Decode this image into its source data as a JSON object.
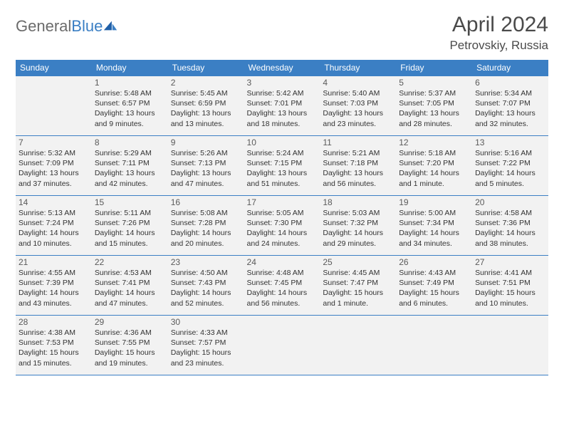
{
  "brand": {
    "name_part1": "General",
    "name_part2": "Blue"
  },
  "title": "April 2024",
  "location": "Petrovskiy, Russia",
  "colors": {
    "header_bg": "#3b7fc4",
    "cell_bg": "#f2f2f2",
    "border": "#3b7fc4",
    "text": "#333333",
    "muted": "#5a5a5a"
  },
  "weekdays": [
    "Sunday",
    "Monday",
    "Tuesday",
    "Wednesday",
    "Thursday",
    "Friday",
    "Saturday"
  ],
  "weeks": [
    [
      null,
      {
        "n": "1",
        "sr": "Sunrise: 5:48 AM",
        "ss": "Sunset: 6:57 PM",
        "dl": "Daylight: 13 hours and 9 minutes."
      },
      {
        "n": "2",
        "sr": "Sunrise: 5:45 AM",
        "ss": "Sunset: 6:59 PM",
        "dl": "Daylight: 13 hours and 13 minutes."
      },
      {
        "n": "3",
        "sr": "Sunrise: 5:42 AM",
        "ss": "Sunset: 7:01 PM",
        "dl": "Daylight: 13 hours and 18 minutes."
      },
      {
        "n": "4",
        "sr": "Sunrise: 5:40 AM",
        "ss": "Sunset: 7:03 PM",
        "dl": "Daylight: 13 hours and 23 minutes."
      },
      {
        "n": "5",
        "sr": "Sunrise: 5:37 AM",
        "ss": "Sunset: 7:05 PM",
        "dl": "Daylight: 13 hours and 28 minutes."
      },
      {
        "n": "6",
        "sr": "Sunrise: 5:34 AM",
        "ss": "Sunset: 7:07 PM",
        "dl": "Daylight: 13 hours and 32 minutes."
      }
    ],
    [
      {
        "n": "7",
        "sr": "Sunrise: 5:32 AM",
        "ss": "Sunset: 7:09 PM",
        "dl": "Daylight: 13 hours and 37 minutes."
      },
      {
        "n": "8",
        "sr": "Sunrise: 5:29 AM",
        "ss": "Sunset: 7:11 PM",
        "dl": "Daylight: 13 hours and 42 minutes."
      },
      {
        "n": "9",
        "sr": "Sunrise: 5:26 AM",
        "ss": "Sunset: 7:13 PM",
        "dl": "Daylight: 13 hours and 47 minutes."
      },
      {
        "n": "10",
        "sr": "Sunrise: 5:24 AM",
        "ss": "Sunset: 7:15 PM",
        "dl": "Daylight: 13 hours and 51 minutes."
      },
      {
        "n": "11",
        "sr": "Sunrise: 5:21 AM",
        "ss": "Sunset: 7:18 PM",
        "dl": "Daylight: 13 hours and 56 minutes."
      },
      {
        "n": "12",
        "sr": "Sunrise: 5:18 AM",
        "ss": "Sunset: 7:20 PM",
        "dl": "Daylight: 14 hours and 1 minute."
      },
      {
        "n": "13",
        "sr": "Sunrise: 5:16 AM",
        "ss": "Sunset: 7:22 PM",
        "dl": "Daylight: 14 hours and 5 minutes."
      }
    ],
    [
      {
        "n": "14",
        "sr": "Sunrise: 5:13 AM",
        "ss": "Sunset: 7:24 PM",
        "dl": "Daylight: 14 hours and 10 minutes."
      },
      {
        "n": "15",
        "sr": "Sunrise: 5:11 AM",
        "ss": "Sunset: 7:26 PM",
        "dl": "Daylight: 14 hours and 15 minutes."
      },
      {
        "n": "16",
        "sr": "Sunrise: 5:08 AM",
        "ss": "Sunset: 7:28 PM",
        "dl": "Daylight: 14 hours and 20 minutes."
      },
      {
        "n": "17",
        "sr": "Sunrise: 5:05 AM",
        "ss": "Sunset: 7:30 PM",
        "dl": "Daylight: 14 hours and 24 minutes."
      },
      {
        "n": "18",
        "sr": "Sunrise: 5:03 AM",
        "ss": "Sunset: 7:32 PM",
        "dl": "Daylight: 14 hours and 29 minutes."
      },
      {
        "n": "19",
        "sr": "Sunrise: 5:00 AM",
        "ss": "Sunset: 7:34 PM",
        "dl": "Daylight: 14 hours and 34 minutes."
      },
      {
        "n": "20",
        "sr": "Sunrise: 4:58 AM",
        "ss": "Sunset: 7:36 PM",
        "dl": "Daylight: 14 hours and 38 minutes."
      }
    ],
    [
      {
        "n": "21",
        "sr": "Sunrise: 4:55 AM",
        "ss": "Sunset: 7:39 PM",
        "dl": "Daylight: 14 hours and 43 minutes."
      },
      {
        "n": "22",
        "sr": "Sunrise: 4:53 AM",
        "ss": "Sunset: 7:41 PM",
        "dl": "Daylight: 14 hours and 47 minutes."
      },
      {
        "n": "23",
        "sr": "Sunrise: 4:50 AM",
        "ss": "Sunset: 7:43 PM",
        "dl": "Daylight: 14 hours and 52 minutes."
      },
      {
        "n": "24",
        "sr": "Sunrise: 4:48 AM",
        "ss": "Sunset: 7:45 PM",
        "dl": "Daylight: 14 hours and 56 minutes."
      },
      {
        "n": "25",
        "sr": "Sunrise: 4:45 AM",
        "ss": "Sunset: 7:47 PM",
        "dl": "Daylight: 15 hours and 1 minute."
      },
      {
        "n": "26",
        "sr": "Sunrise: 4:43 AM",
        "ss": "Sunset: 7:49 PM",
        "dl": "Daylight: 15 hours and 6 minutes."
      },
      {
        "n": "27",
        "sr": "Sunrise: 4:41 AM",
        "ss": "Sunset: 7:51 PM",
        "dl": "Daylight: 15 hours and 10 minutes."
      }
    ],
    [
      {
        "n": "28",
        "sr": "Sunrise: 4:38 AM",
        "ss": "Sunset: 7:53 PM",
        "dl": "Daylight: 15 hours and 15 minutes."
      },
      {
        "n": "29",
        "sr": "Sunrise: 4:36 AM",
        "ss": "Sunset: 7:55 PM",
        "dl": "Daylight: 15 hours and 19 minutes."
      },
      {
        "n": "30",
        "sr": "Sunrise: 4:33 AM",
        "ss": "Sunset: 7:57 PM",
        "dl": "Daylight: 15 hours and 23 minutes."
      },
      null,
      null,
      null,
      null
    ]
  ]
}
